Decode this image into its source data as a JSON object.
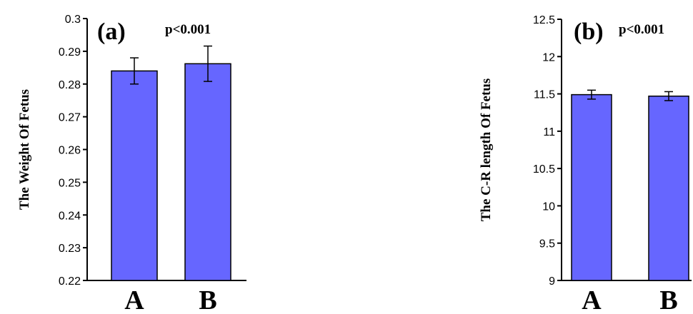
{
  "chart_data": [
    {
      "type": "bar",
      "panel_label": "(a)",
      "annotation": "p<0.001",
      "ylabel": "The Weight Of Fetus",
      "categories": [
        "A",
        "B"
      ],
      "values": [
        0.284,
        0.2862
      ],
      "error": [
        0.004,
        0.0054
      ],
      "ylim": [
        0.22,
        0.3
      ],
      "yticks": [
        "0.22",
        "0.23",
        "0.24",
        "0.25",
        "0.26",
        "0.27",
        "0.28",
        "0.29",
        "0.3"
      ],
      "bar_color": "#6666ff",
      "grid": false
    },
    {
      "type": "bar",
      "panel_label": "(b)",
      "annotation": "p<0.001",
      "ylabel": "The C-R length Of Fetus",
      "categories": [
        "A",
        "B"
      ],
      "values": [
        11.49,
        11.47
      ],
      "error": [
        0.06,
        0.06
      ],
      "ylim": [
        9,
        12.5
      ],
      "yticks": [
        "9",
        "9.5",
        "10",
        "10.5",
        "11",
        "11.5",
        "12",
        "12.5"
      ],
      "bar_color": "#6666ff",
      "grid": false
    }
  ]
}
